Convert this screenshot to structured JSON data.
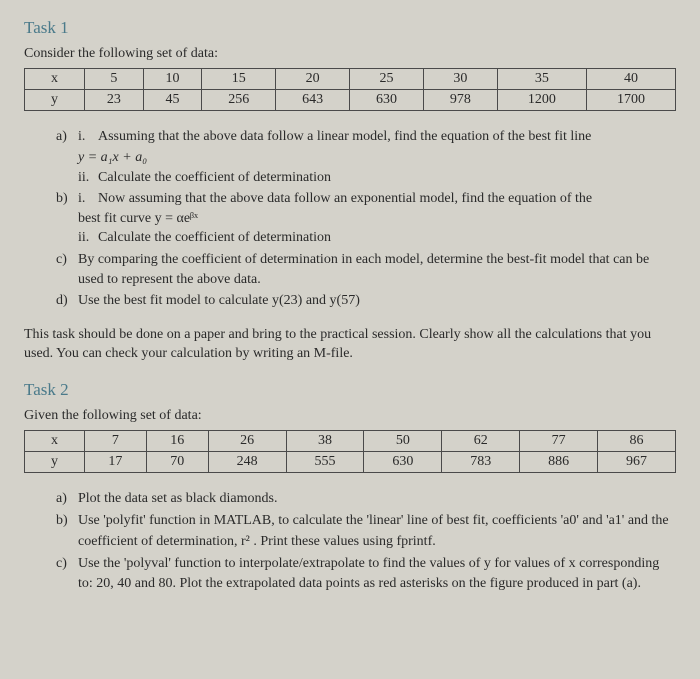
{
  "task1": {
    "title": "Task 1",
    "intro": "Consider the following set of data:",
    "table": {
      "row_labels": [
        "x",
        "y"
      ],
      "x_values": [
        "5",
        "10",
        "15",
        "20",
        "25",
        "30",
        "35",
        "40"
      ],
      "y_values": [
        "23",
        "45",
        "256",
        "643",
        "630",
        "978",
        "1200",
        "1700"
      ]
    },
    "items": {
      "a": {
        "marker": "a)",
        "i_marker": "i.",
        "i_text": "Assuming that the above data follow a linear model, find the equation of the best fit line",
        "equation": "y = a₁x + a₀",
        "ii_marker": "ii.",
        "ii_text": "Calculate the coefficient of determination"
      },
      "b": {
        "marker": "b)",
        "i_marker": "i.",
        "i_text": "Now assuming that the above data follow an exponential  model, find the equation of the",
        "i_text2": "best fit curve  y = αeᵝˣ",
        "ii_marker": "ii.",
        "ii_text": "Calculate the coefficient of determination"
      },
      "c": {
        "marker": "c)",
        "text": "By comparing the coefficient of determination in each model, determine the best-fit model that can be used to represent the above data."
      },
      "d": {
        "marker": "d)",
        "text": "Use the best fit model to calculate  y(23)  and  y(57)"
      }
    },
    "instructions": "This task should be done on a paper and bring to the practical session. Clearly show all the calculations that you used. You can check your calculation by writing an M-file."
  },
  "task2": {
    "title": "Task 2",
    "intro": "Given the following set of data:",
    "table": {
      "row_labels": [
        "x",
        "y"
      ],
      "x_values": [
        "7",
        "16",
        "26",
        "38",
        "50",
        "62",
        "77",
        "86"
      ],
      "y_values": [
        "17",
        "70",
        "248",
        "555",
        "630",
        "783",
        "886",
        "967"
      ]
    },
    "items": {
      "a": {
        "marker": "a)",
        "text": "Plot the data set as black diamonds."
      },
      "b": {
        "marker": "b)",
        "text": "Use 'polyfit' function in MATLAB, to calculate the 'linear' line of best fit, coefficients 'a0' and 'a1' and the coefficient of determination, r² . Print these values using fprintf."
      },
      "c": {
        "marker": "c)",
        "text": "Use the 'polyval' function to interpolate/extrapolate to find the values of y for values of x corresponding to: 20, 40 and 80. Plot the extrapolated data points as red asterisks on the figure produced in part (a)."
      }
    }
  }
}
